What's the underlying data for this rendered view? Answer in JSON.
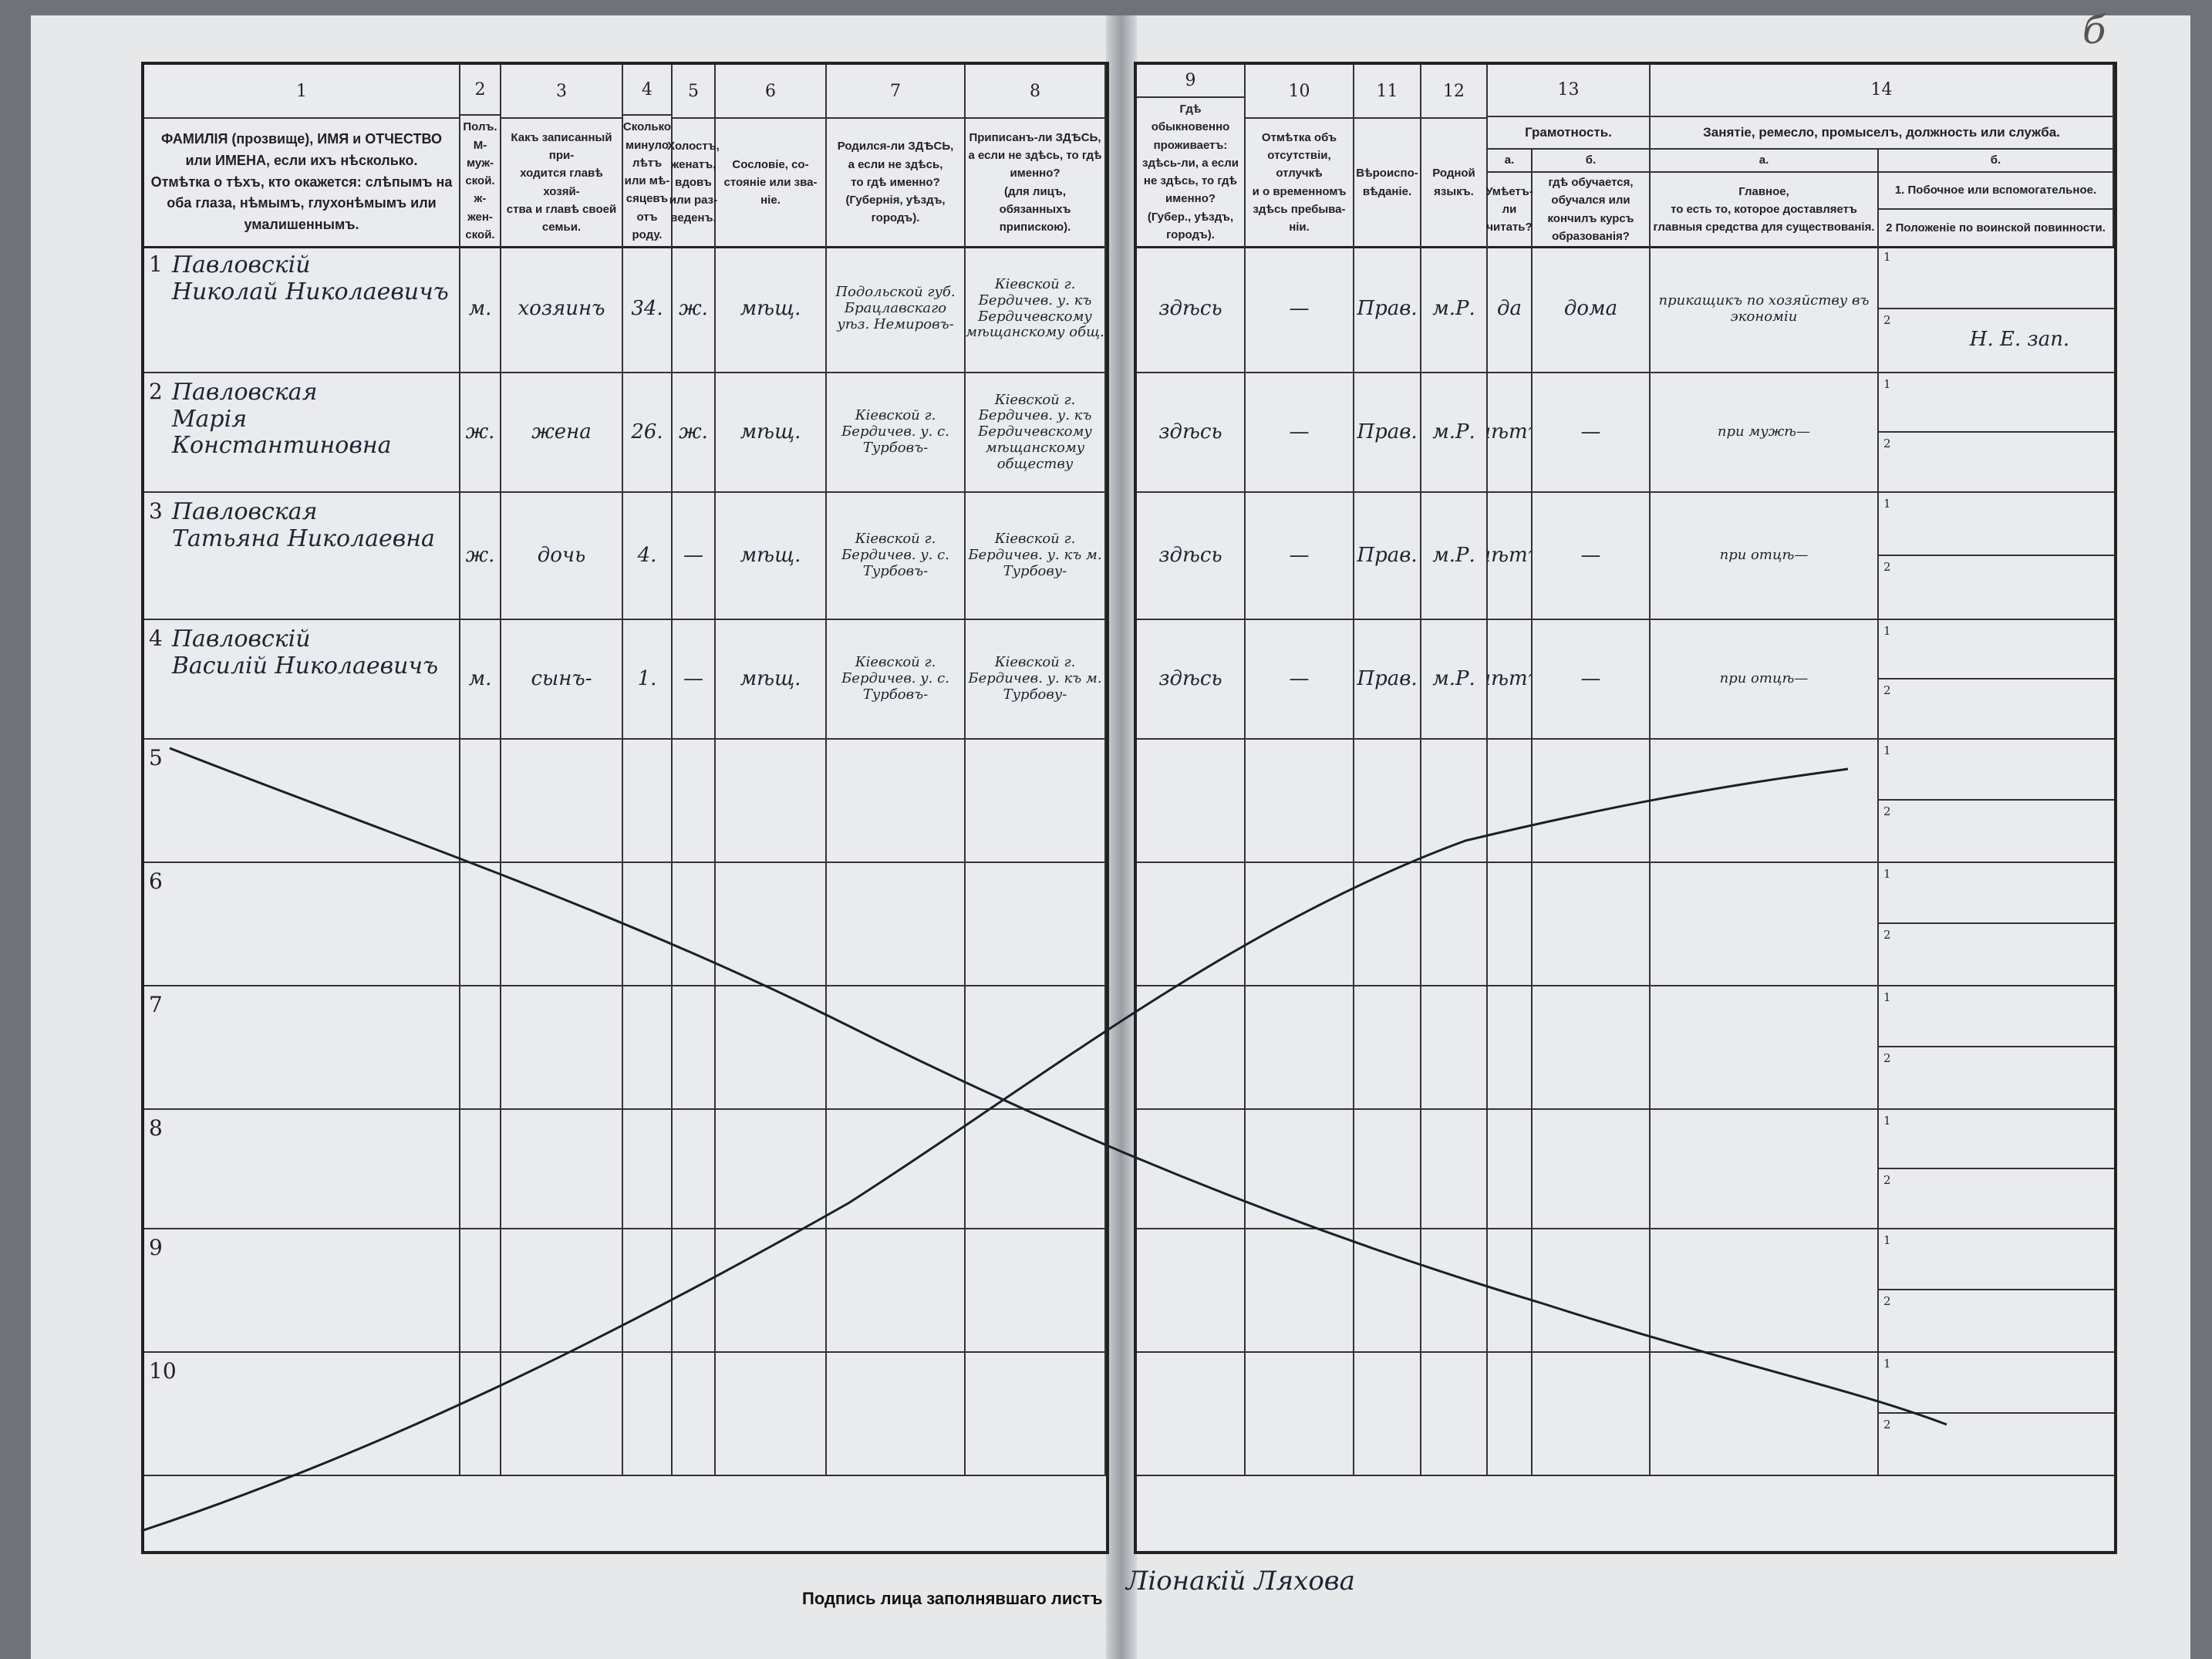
{
  "page_mark": "б",
  "header_left": [
    {
      "num": "1",
      "text": "ФАМИЛІЯ (прозвище), ИМЯ и ОТЧЕСТВО или ИМЕНА, если ихъ нѣсколько.\nОтмѣтка о тѣхъ, кто окажется: слѣпымъ на оба глаза, нѣмымъ, глухонѣмымъ или умалишеннымъ."
    },
    {
      "num": "2",
      "text": "Полъ.\nМ-муж-\nской.\nж-жен-\nской."
    },
    {
      "num": "3",
      "text": "Какъ записанный при-\nходится главѣ хозяй-\nства и главѣ своей\nсемьи."
    },
    {
      "num": "4",
      "text": "Сколько\nминуло\nлѣтъ\nили мѣ-\nсяцевъ\nотъ роду."
    },
    {
      "num": "5",
      "text": "Холостъ,\nженатъ,\nвдовъ\nили раз-\nведенъ."
    },
    {
      "num": "6",
      "text": "Сословіе, со-\nстояніе или зва-\nніе."
    },
    {
      "num": "7",
      "text": "Родился-ли ЗДѢСЬ,\nа если не здѣсь,\nто гдѣ именно?\n(Губернія, уѣздъ, городъ)."
    },
    {
      "num": "8",
      "text": "Приписанъ-ли ЗДѢСЬ,\nа если не здѣсь, то гдѣ\nименно?\n(для лицъ, обязанныхъ\nприпискою)."
    }
  ],
  "header_right": [
    {
      "num": "9",
      "text": "Гдѣ обыкновенно\nпроживаетъ:\nздѣсь-ли, а если\nне здѣсь, то гдѣ\nименно?\n(Губер., уѣздъ, городъ)."
    },
    {
      "num": "10",
      "text": "Отмѣтка объ\nотсутствіи, отлучкѣ\nи о временномъ\nздѣсь пребыва-\nніи."
    },
    {
      "num": "11",
      "text": "Вѣроиспо-\nвѣданіе."
    },
    {
      "num": "12",
      "text": "Родной\nязыкъ."
    },
    {
      "num": "13",
      "group": "Грамотность.",
      "a_label": "а.",
      "a_text": "Умѣетъ-\nли\nчитать?",
      "b_label": "б.",
      "b_text": "гдѣ обучается,\nобучался или\nкончилъ курсъ\nобразованія?"
    },
    {
      "num": "14",
      "group": "Занятіе, ремесло, промыселъ, должность или служба.",
      "a_label": "а.",
      "a_text": "Главное,\nто есть то, которое доставляетъ\nглавныя средства для существованія.",
      "b_label": "б.",
      "b1_text": "1. Побочное или вспомогательное.",
      "b2_text": "2  Положеніе по воинской повинности."
    }
  ],
  "rows": [
    {
      "n": "1",
      "name": "Павловскій\nНиколай Николаевичъ",
      "sex": "м.",
      "relation": "хозяинъ",
      "age": "34.",
      "marital": "ж.",
      "estate": "мѣщ.",
      "born": "Подольской губ. Брацлавскаго уѣз. Немировъ-",
      "registered": "Кіевской г. Бердичев. у. къ Бердичевскому мѣщанскому общ.",
      "residence": "здѣсь",
      "absence": "—",
      "religion": "Прав.",
      "language": "м.Р.",
      "literate": "да",
      "education": "дома",
      "occupation": "прикащикъ по хозяйству въ экономіи",
      "side1": "",
      "military": "Н. Е. зап."
    },
    {
      "n": "2",
      "name": "Павловская\nМарія Константиновна",
      "sex": "ж.",
      "relation": "жена",
      "age": "26.",
      "marital": "ж.",
      "estate": "мѣщ.",
      "born": "Кіевской г. Бердичев. у. с. Турбовъ-",
      "registered": "Кіевской г. Бердичев. у. къ Бердичевскому мѣщанскому обществу",
      "residence": "здѣсь",
      "absence": "—",
      "religion": "Прав.",
      "language": "м.Р.",
      "literate": "нѣтъ",
      "education": "—",
      "occupation": "при мужѣ—",
      "side1": "",
      "military": ""
    },
    {
      "n": "3",
      "name": "Павловская\nТатьяна Николаевна",
      "sex": "ж.",
      "relation": "дочь",
      "age": "4.",
      "marital": "—",
      "estate": "мѣщ.",
      "born": "Кіевской г. Бердичев. у. с. Турбовъ-",
      "registered": "Кіевской г. Бердичев. у. къ м. Турбову-",
      "residence": "здѣсь",
      "absence": "—",
      "religion": "Прав.",
      "language": "м.Р.",
      "literate": "нѣтъ",
      "education": "—",
      "occupation": "при отцѣ—",
      "side1": "",
      "military": ""
    },
    {
      "n": "4",
      "name": "Павловскій\nВасилій Николаевичъ",
      "sex": "м.",
      "relation": "сынъ-",
      "age": "1.",
      "marital": "—",
      "estate": "мѣщ.",
      "born": "Кіевской г. Бердичев. у. с. Турбовъ-",
      "registered": "Кіевской г. Бердичев. у. къ м. Турбову-",
      "residence": "здѣсь",
      "absence": "—",
      "religion": "Прав.",
      "language": "м.Р.",
      "literate": "нѣтъ",
      "education": "—",
      "occupation": "при отцѣ—",
      "side1": "",
      "military": ""
    },
    {
      "n": "5"
    },
    {
      "n": "6"
    },
    {
      "n": "7"
    },
    {
      "n": "8"
    },
    {
      "n": "9"
    },
    {
      "n": "10"
    }
  ],
  "sub_labels": {
    "one": "1",
    "two": "2"
  },
  "footer": {
    "label": "Подпись лица заполнявшаго листъ",
    "signature": "Ліонакій Ляхова"
  }
}
